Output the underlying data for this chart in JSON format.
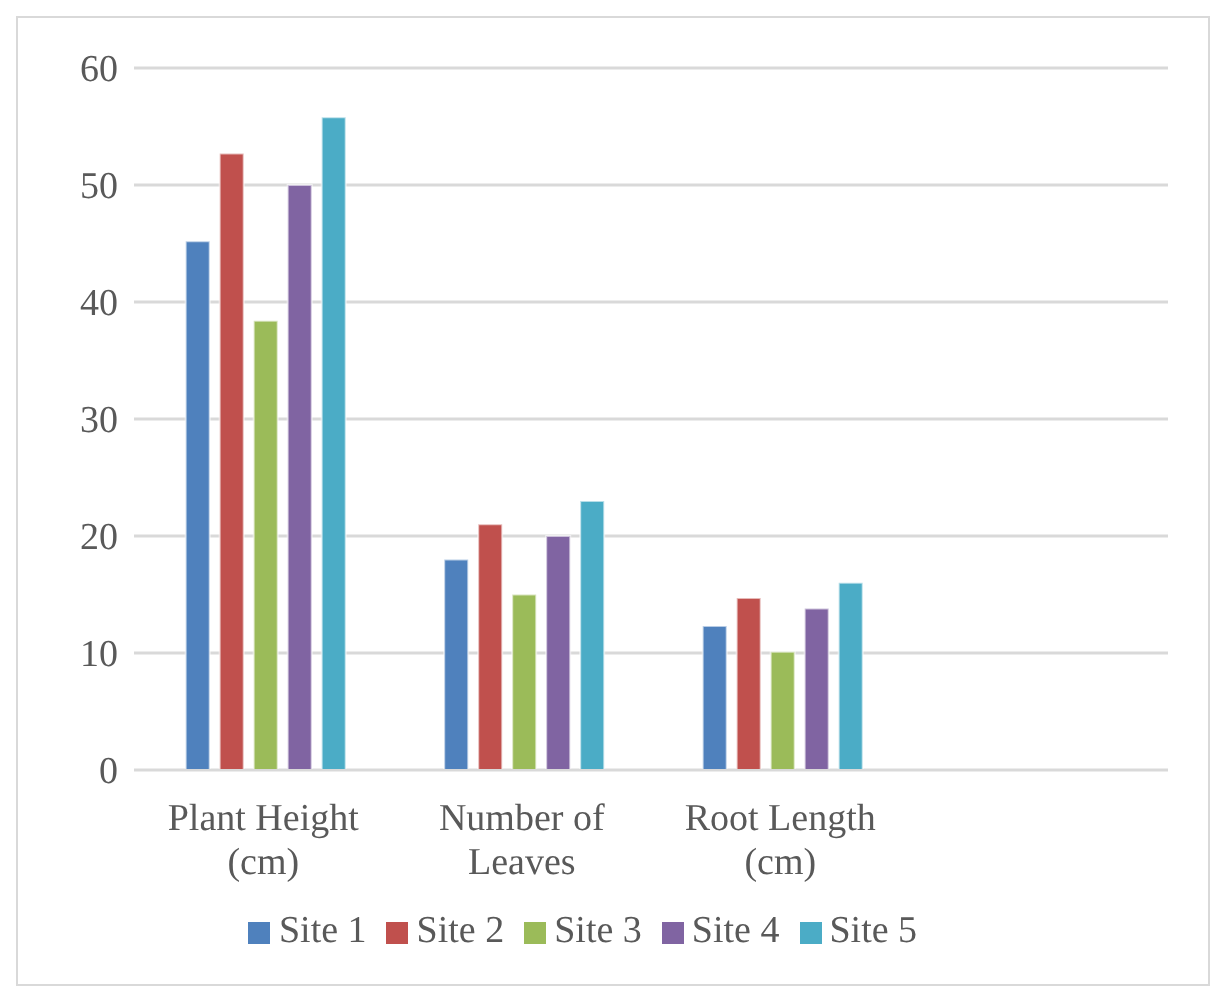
{
  "chart_data": {
    "type": "bar",
    "categories": [
      "Plant Height (cm)",
      "Number of Leaves",
      "Root Length (cm)",
      null
    ],
    "series": [
      {
        "name": "Site 1",
        "color": "#4f81bd",
        "values": [
          45.2,
          18,
          12.3,
          null
        ]
      },
      {
        "name": "Site 2",
        "color": "#c0504d",
        "values": [
          52.7,
          21,
          14.7,
          null
        ]
      },
      {
        "name": "Site 3",
        "color": "#9bbb59",
        "values": [
          38.4,
          15,
          10.1,
          null
        ]
      },
      {
        "name": "Site 4",
        "color": "#8064a2",
        "values": [
          50,
          20,
          13.8,
          null
        ]
      },
      {
        "name": "Site 5",
        "color": "#4bacc6",
        "values": [
          55.8,
          23,
          16,
          null
        ]
      }
    ],
    "ylim": [
      0,
      60
    ],
    "yticks": [
      0,
      10,
      20,
      30,
      40,
      50,
      60
    ],
    "grid": "y",
    "legend": "bottom"
  }
}
